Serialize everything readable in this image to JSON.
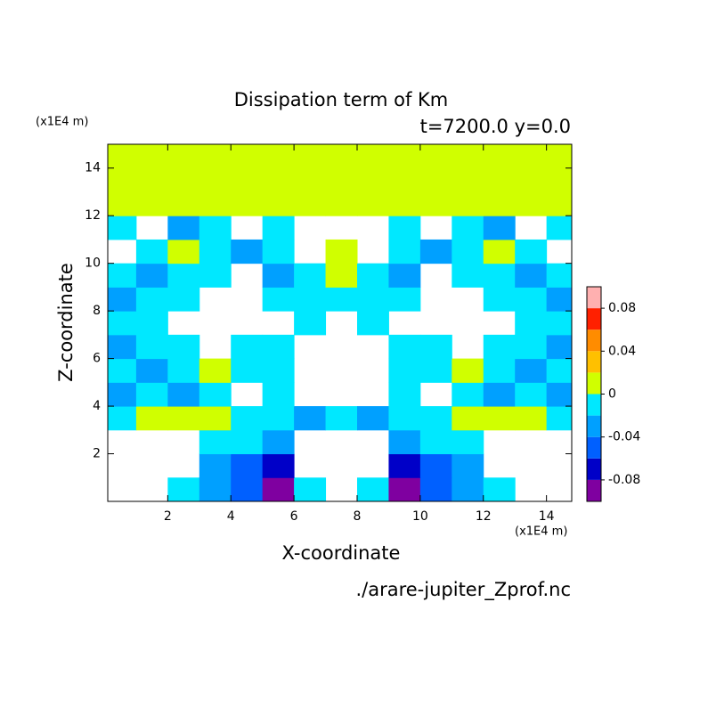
{
  "chart_data": {
    "type": "contour",
    "title": "Dissipation term of Km",
    "subtitle": "t=7200.0 y=0.0",
    "x_label": "X-coordinate",
    "y_label": "Z-coordinate",
    "x_unit": "(x1E4 m)",
    "y_unit": "(x1E4 m)",
    "source": "./arare-jupiter_Zprof.nc",
    "xlim": [
      0.1,
      14.8
    ],
    "ylim": [
      0,
      15
    ],
    "xticks": [
      2,
      4,
      6,
      8,
      10,
      12,
      14
    ],
    "yticks": [
      2,
      4,
      6,
      8,
      10,
      12,
      14
    ],
    "x": [
      0.5,
      1.5,
      2.5,
      3.5,
      4.5,
      5.5,
      6.5,
      7.5,
      8.5,
      9.5,
      10.5,
      11.5,
      12.5,
      13.5,
      14.5
    ],
    "y": [
      0.5,
      1.5,
      2.5,
      3.5,
      4.5,
      5.5,
      6.5,
      7.5,
      8.5,
      9.5,
      10.5,
      11.5,
      12.5,
      13.5,
      14.5
    ],
    "z": [
      [
        null,
        null,
        -0.01,
        -0.03,
        -0.05,
        -0.09,
        -0.01,
        null,
        -0.01,
        -0.09,
        -0.05,
        -0.03,
        -0.01,
        null,
        null
      ],
      [
        null,
        null,
        null,
        -0.03,
        -0.05,
        -0.07,
        null,
        null,
        null,
        -0.07,
        -0.05,
        -0.03,
        null,
        null,
        null
      ],
      [
        null,
        null,
        null,
        -0.01,
        -0.01,
        -0.03,
        null,
        null,
        null,
        -0.03,
        -0.01,
        -0.01,
        null,
        null,
        null
      ],
      [
        -0.01,
        0.01,
        0.01,
        0.01,
        -0.01,
        -0.01,
        -0.03,
        -0.01,
        -0.03,
        -0.01,
        -0.01,
        0.01,
        0.01,
        0.01,
        -0.01
      ],
      [
        -0.03,
        -0.01,
        -0.03,
        -0.01,
        null,
        -0.01,
        null,
        null,
        null,
        -0.01,
        null,
        -0.01,
        -0.03,
        -0.01,
        -0.03
      ],
      [
        -0.01,
        -0.03,
        -0.01,
        0.01,
        -0.01,
        -0.01,
        null,
        null,
        null,
        -0.01,
        -0.01,
        0.01,
        -0.01,
        -0.03,
        -0.01
      ],
      [
        -0.03,
        -0.01,
        -0.01,
        null,
        -0.01,
        -0.01,
        null,
        null,
        null,
        -0.01,
        -0.01,
        null,
        -0.01,
        -0.01,
        -0.03
      ],
      [
        -0.01,
        -0.01,
        null,
        null,
        null,
        null,
        -0.01,
        null,
        -0.01,
        null,
        null,
        null,
        null,
        -0.01,
        -0.01
      ],
      [
        -0.03,
        -0.01,
        -0.01,
        null,
        null,
        -0.01,
        -0.01,
        -0.01,
        -0.01,
        -0.01,
        null,
        null,
        -0.01,
        -0.01,
        -0.03
      ],
      [
        -0.01,
        -0.03,
        -0.01,
        -0.01,
        null,
        -0.03,
        -0.01,
        0.01,
        -0.01,
        -0.03,
        null,
        -0.01,
        -0.01,
        -0.03,
        -0.01
      ],
      [
        null,
        -0.01,
        0.01,
        -0.01,
        -0.03,
        -0.01,
        null,
        0.01,
        null,
        -0.01,
        -0.03,
        -0.01,
        0.01,
        -0.01,
        null
      ],
      [
        -0.01,
        null,
        -0.03,
        -0.01,
        null,
        -0.01,
        null,
        null,
        null,
        -0.01,
        null,
        -0.01,
        -0.03,
        null,
        -0.01
      ],
      [
        0.01,
        0.01,
        0.01,
        0.01,
        0.01,
        0.01,
        0.01,
        0.01,
        0.01,
        0.01,
        0.01,
        0.01,
        0.01,
        0.01,
        0.01
      ],
      [
        0.01,
        0.01,
        0.01,
        0.01,
        0.01,
        0.01,
        0.01,
        0.01,
        0.01,
        0.01,
        0.01,
        0.01,
        0.01,
        0.01,
        0.01
      ],
      [
        0.01,
        0.01,
        0.01,
        0.01,
        0.01,
        0.01,
        0.01,
        0.01,
        0.01,
        0.01,
        0.01,
        0.01,
        0.01,
        0.01,
        0.01
      ]
    ],
    "levels": [
      -0.1,
      -0.08,
      -0.06,
      -0.04,
      -0.02,
      0,
      0.02,
      0.04,
      0.06,
      0.08,
      0.1
    ],
    "colors": [
      "#7f00a0",
      "#0000c8",
      "#0060ff",
      "#00a0ff",
      "#00e8ff",
      "#d0ff00",
      "#ffc000",
      "#ff8c00",
      "#ff2000",
      "#ffb0b0"
    ],
    "colorbar_ticks": [
      -0.08,
      -0.04,
      0,
      0.04,
      0.08
    ]
  }
}
